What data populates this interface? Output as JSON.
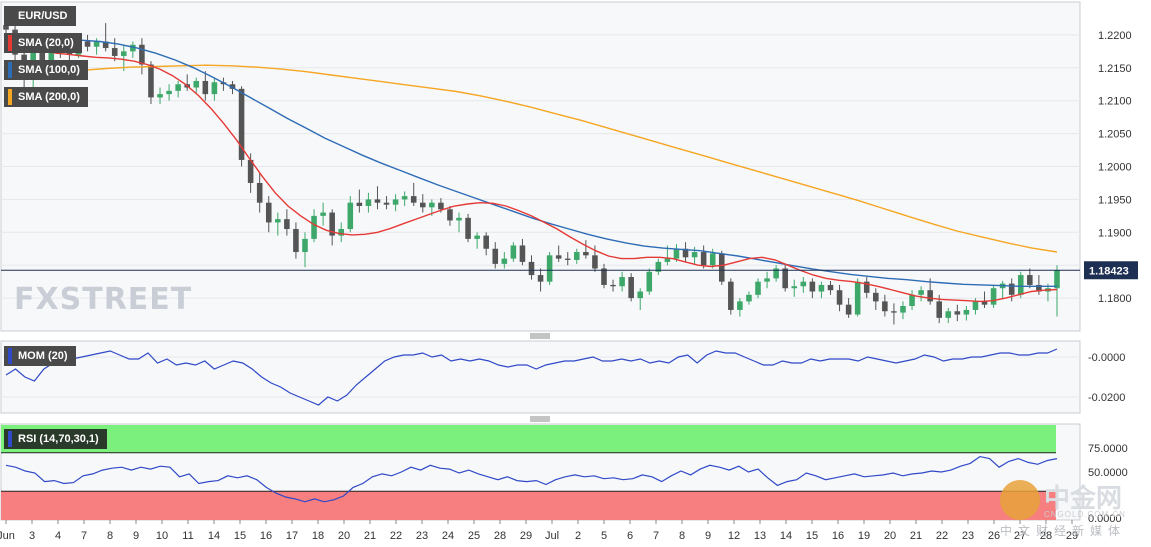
{
  "legends": {
    "symbol": "EUR/USD",
    "sma20": "SMA (20,0)",
    "sma100": "SMA (100,0)",
    "sma200": "SMA (200,0)",
    "mom": "MOM (20)",
    "rsi": "RSI (14,70,30,1)"
  },
  "colors": {
    "sma20": "#e53935",
    "sma100": "#2e6cb5",
    "sma200": "#f5a623",
    "bull": "#3da86a",
    "bear": "#555555",
    "mom_line": "#2f49c8",
    "rsi_line": "#2f49c8",
    "rsi_overbought_zone": "#7cf07c",
    "rsi_oversold_zone": "#f77f7f"
  },
  "watermark": {
    "brand": "FXSTREET",
    "cn_name": "中金网",
    "cn_url": "CNGOLD.COM.CN",
    "cn_tagline": "中文财经新媒体"
  },
  "chart_data": {
    "type": "candlestick",
    "symbol": "EUR/USD",
    "last_price": 1.18423,
    "last_price_label": "1.18423",
    "x_labels": [
      "Jun",
      "3",
      "4",
      "7",
      "8",
      "9",
      "10",
      "11",
      "14",
      "15",
      "16",
      "17",
      "18",
      "20",
      "21",
      "22",
      "23",
      "24",
      "25",
      "28",
      "29",
      "Jul",
      "2",
      "5",
      "6",
      "7",
      "8",
      "9",
      "12",
      "13",
      "14",
      "15",
      "16",
      "19",
      "20",
      "21",
      "22",
      "23",
      "26",
      "27",
      "28",
      "29"
    ],
    "price_axis": {
      "ticks": [
        1.22,
        1.215,
        1.21,
        1.205,
        1.2,
        1.195,
        1.19,
        1.185,
        1.18
      ],
      "tick_labels": [
        "1.2200",
        "1.2150",
        "1.2100",
        "1.2050",
        "1.2000",
        "1.1950",
        "1.1900",
        "1.1850",
        "1.1800"
      ],
      "range": [
        1.175,
        1.225
      ]
    },
    "candles": [
      [
        1.2215,
        1.2228,
        1.2195,
        1.2208
      ],
      [
        1.2208,
        1.2215,
        1.216,
        1.217
      ],
      [
        1.217,
        1.2185,
        1.211,
        1.2135
      ],
      [
        1.2135,
        1.22,
        1.212,
        1.219
      ],
      [
        1.219,
        1.2195,
        1.215,
        1.216
      ],
      [
        1.216,
        1.22,
        1.2145,
        1.2185
      ],
      [
        1.2185,
        1.2198,
        1.2165,
        1.2178
      ],
      [
        1.2178,
        1.2192,
        1.216,
        1.217
      ],
      [
        1.217,
        1.2195,
        1.2165,
        1.219
      ],
      [
        1.219,
        1.22,
        1.2175,
        1.2182
      ],
      [
        1.2182,
        1.2195,
        1.217,
        1.219
      ],
      [
        1.219,
        1.2218,
        1.2175,
        1.218
      ],
      [
        1.218,
        1.2195,
        1.216,
        1.2168
      ],
      [
        1.2168,
        1.2185,
        1.2145,
        1.2175
      ],
      [
        1.2175,
        1.219,
        1.2165,
        1.2185
      ],
      [
        1.2185,
        1.2195,
        1.214,
        1.2155
      ],
      [
        1.2155,
        1.216,
        1.2095,
        1.2105
      ],
      [
        1.2105,
        1.212,
        1.2095,
        1.211
      ],
      [
        1.211,
        1.2125,
        1.21,
        1.2115
      ],
      [
        1.2115,
        1.213,
        1.2105,
        1.2125
      ],
      [
        1.2125,
        1.214,
        1.2115,
        1.212
      ],
      [
        1.212,
        1.2135,
        1.211,
        1.213
      ],
      [
        1.213,
        1.2145,
        1.21,
        1.211
      ],
      [
        1.211,
        1.2135,
        1.21,
        1.2128
      ],
      [
        1.2128,
        1.2135,
        1.2115,
        1.2125
      ],
      [
        1.2125,
        1.213,
        1.211,
        1.2118
      ],
      [
        1.2118,
        1.2122,
        1.2,
        1.201
      ],
      [
        1.201,
        1.202,
        1.196,
        1.1975
      ],
      [
        1.1975,
        1.199,
        1.193,
        1.1945
      ],
      [
        1.1945,
        1.1955,
        1.19,
        1.1915
      ],
      [
        1.1915,
        1.193,
        1.1895,
        1.192
      ],
      [
        1.192,
        1.1935,
        1.1895,
        1.1905
      ],
      [
        1.1905,
        1.1915,
        1.186,
        1.187
      ],
      [
        1.187,
        1.19,
        1.1847,
        1.189
      ],
      [
        1.189,
        1.1935,
        1.1885,
        1.1925
      ],
      [
        1.1925,
        1.1945,
        1.191,
        1.193
      ],
      [
        1.193,
        1.1935,
        1.188,
        1.1895
      ],
      [
        1.1895,
        1.1915,
        1.1885,
        1.1905
      ],
      [
        1.1905,
        1.1955,
        1.19,
        1.1945
      ],
      [
        1.1945,
        1.1965,
        1.193,
        1.194
      ],
      [
        1.194,
        1.196,
        1.193,
        1.195
      ],
      [
        1.195,
        1.197,
        1.1935,
        1.1945
      ],
      [
        1.1945,
        1.1955,
        1.1935,
        1.1942
      ],
      [
        1.1942,
        1.1958,
        1.1932,
        1.195
      ],
      [
        1.195,
        1.1962,
        1.194,
        1.1955
      ],
      [
        1.1955,
        1.1975,
        1.194,
        1.1945
      ],
      [
        1.1945,
        1.1958,
        1.193,
        1.1938
      ],
      [
        1.1938,
        1.195,
        1.1925,
        1.1945
      ],
      [
        1.1945,
        1.1952,
        1.193,
        1.1935
      ],
      [
        1.1935,
        1.194,
        1.191,
        1.1918
      ],
      [
        1.1918,
        1.193,
        1.19,
        1.1922
      ],
      [
        1.1922,
        1.1928,
        1.1885,
        1.189
      ],
      [
        1.189,
        1.19,
        1.1875,
        1.1895
      ],
      [
        1.1895,
        1.19,
        1.1865,
        1.1875
      ],
      [
        1.1875,
        1.1885,
        1.1845,
        1.1852
      ],
      [
        1.1852,
        1.187,
        1.1845,
        1.186
      ],
      [
        1.186,
        1.1885,
        1.1855,
        1.188
      ],
      [
        1.188,
        1.189,
        1.185,
        1.1855
      ],
      [
        1.1855,
        1.1865,
        1.1828,
        1.1835
      ],
      [
        1.1835,
        1.1845,
        1.181,
        1.1825
      ],
      [
        1.1825,
        1.187,
        1.182,
        1.1865
      ],
      [
        1.1865,
        1.188,
        1.1855,
        1.186
      ],
      [
        1.186,
        1.187,
        1.185,
        1.1858
      ],
      [
        1.1858,
        1.1875,
        1.1852,
        1.187
      ],
      [
        1.187,
        1.1888,
        1.186,
        1.1865
      ],
      [
        1.1865,
        1.188,
        1.184,
        1.1845
      ],
      [
        1.1845,
        1.1852,
        1.1815,
        1.182
      ],
      [
        1.182,
        1.1828,
        1.181,
        1.1818
      ],
      [
        1.1818,
        1.184,
        1.181,
        1.1832
      ],
      [
        1.1832,
        1.1838,
        1.1795,
        1.18
      ],
      [
        1.18,
        1.1815,
        1.1782,
        1.181
      ],
      [
        1.181,
        1.1845,
        1.1805,
        1.184
      ],
      [
        1.184,
        1.186,
        1.1835,
        1.1855
      ],
      [
        1.1855,
        1.188,
        1.185,
        1.186
      ],
      [
        1.186,
        1.1882,
        1.1855,
        1.1875
      ],
      [
        1.1875,
        1.1885,
        1.1855,
        1.1862
      ],
      [
        1.1862,
        1.1878,
        1.1852,
        1.187
      ],
      [
        1.187,
        1.188,
        1.1845,
        1.185
      ],
      [
        1.185,
        1.1875,
        1.1845,
        1.1868
      ],
      [
        1.1868,
        1.1872,
        1.182,
        1.1825
      ],
      [
        1.1825,
        1.183,
        1.1775,
        1.1782
      ],
      [
        1.1782,
        1.18,
        1.1772,
        1.1795
      ],
      [
        1.1795,
        1.181,
        1.179,
        1.1805
      ],
      [
        1.1805,
        1.183,
        1.18,
        1.1825
      ],
      [
        1.1825,
        1.184,
        1.1815,
        1.183
      ],
      [
        1.183,
        1.185,
        1.1825,
        1.1845
      ],
      [
        1.1845,
        1.1852,
        1.181,
        1.1815
      ],
      [
        1.1815,
        1.1828,
        1.1802,
        1.1818
      ],
      [
        1.1818,
        1.1832,
        1.1808,
        1.1825
      ],
      [
        1.1825,
        1.183,
        1.18,
        1.181
      ],
      [
        1.181,
        1.1825,
        1.18,
        1.182
      ],
      [
        1.182,
        1.1826,
        1.1805,
        1.1812
      ],
      [
        1.1812,
        1.182,
        1.178,
        1.179
      ],
      [
        1.179,
        1.18,
        1.177,
        1.1775
      ],
      [
        1.1775,
        1.183,
        1.1772,
        1.1825
      ],
      [
        1.1825,
        1.1832,
        1.18,
        1.1808
      ],
      [
        1.1808,
        1.1815,
        1.1782,
        1.1795
      ],
      [
        1.1795,
        1.1805,
        1.1772,
        1.178
      ],
      [
        1.178,
        1.1792,
        1.176,
        1.1778
      ],
      [
        1.1778,
        1.1795,
        1.1768,
        1.1788
      ],
      [
        1.1788,
        1.1812,
        1.1782,
        1.1805
      ],
      [
        1.1805,
        1.1818,
        1.1795,
        1.1812
      ],
      [
        1.1812,
        1.183,
        1.179,
        1.1795
      ],
      [
        1.1795,
        1.1805,
        1.1762,
        1.177
      ],
      [
        1.177,
        1.1785,
        1.1762,
        1.178
      ],
      [
        1.178,
        1.179,
        1.1765,
        1.1775
      ],
      [
        1.1775,
        1.1788,
        1.1766,
        1.1782
      ],
      [
        1.1782,
        1.18,
        1.1775,
        1.1795
      ],
      [
        1.1795,
        1.181,
        1.1785,
        1.179
      ],
      [
        1.179,
        1.182,
        1.1785,
        1.1815
      ],
      [
        1.1815,
        1.1826,
        1.18,
        1.1822
      ],
      [
        1.1822,
        1.183,
        1.1795,
        1.1805
      ],
      [
        1.1805,
        1.184,
        1.18,
        1.1835
      ],
      [
        1.1835,
        1.1845,
        1.1815,
        1.182
      ],
      [
        1.182,
        1.1835,
        1.1805,
        1.181
      ],
      [
        1.181,
        1.1822,
        1.1795,
        1.1815
      ],
      [
        1.1815,
        1.185,
        1.1772,
        1.1842
      ]
    ],
    "sma20": [
      1.219,
      1.2185,
      1.218,
      1.2175,
      1.2172,
      1.217,
      1.2168,
      1.2166,
      1.2165,
      1.2163,
      1.216,
      1.2155,
      1.2148,
      1.2138,
      1.2125,
      1.2108,
      1.2088,
      1.2065,
      1.204,
      1.2012,
      1.1985,
      1.196,
      1.194,
      1.1925,
      1.1912,
      1.1903,
      1.1898,
      1.1896,
      1.1897,
      1.19,
      1.1906,
      1.1913,
      1.192,
      1.1927,
      1.1934,
      1.194,
      1.1943,
      1.1945,
      1.1944,
      1.194,
      1.1933,
      1.1925,
      1.1915,
      1.1905,
      1.1893,
      1.1882,
      1.1872,
      1.1864,
      1.186,
      1.186,
      1.1862,
      1.1862,
      1.186,
      1.1855,
      1.185,
      1.1848,
      1.185,
      1.1855,
      1.186,
      1.1862,
      1.1858,
      1.185,
      1.1842,
      1.1835,
      1.183,
      1.1827,
      1.1825,
      1.1822,
      1.1818,
      1.1813,
      1.1808,
      1.1803,
      1.18,
      1.1798,
      1.1797,
      1.1796,
      1.1795,
      1.1796,
      1.18,
      1.1805,
      1.181,
      1.1812,
      1.1813
    ],
    "sma100": [
      1.2185,
      1.2188,
      1.219,
      1.2192,
      1.2192,
      1.219,
      1.2186,
      1.218,
      1.2172,
      1.2162,
      1.215,
      1.2136,
      1.2121,
      1.2105,
      1.2089,
      1.2073,
      1.2058,
      1.2043,
      1.203,
      1.2017,
      1.2005,
      1.1994,
      1.1983,
      1.1972,
      1.1962,
      1.1952,
      1.1942,
      1.1932,
      1.1922,
      1.1913,
      1.1905,
      1.1897,
      1.189,
      1.1884,
      1.1879,
      1.1876,
      1.1874,
      1.1872,
      1.1868,
      1.1864,
      1.1859,
      1.1854,
      1.1849,
      1.1844,
      1.184,
      1.1836,
      1.1833,
      1.183,
      1.1828,
      1.1825,
      1.1823,
      1.1821,
      1.182,
      1.1819,
      1.1818,
      1.1818,
      1.1818
    ],
    "sma200": [
      1.2138,
      1.214,
      1.2143,
      1.2146,
      1.2149,
      1.2151,
      1.2152,
      1.2153,
      1.2154,
      1.2153,
      1.2151,
      1.2148,
      1.2144,
      1.2139,
      1.2134,
      1.2129,
      1.2124,
      1.2119,
      1.2114,
      1.2107,
      1.2099,
      1.209,
      1.208,
      1.207,
      1.2059,
      1.2048,
      1.2037,
      1.2026,
      1.2015,
      1.2004,
      1.1993,
      1.1982,
      1.1971,
      1.196,
      1.1949,
      1.1937,
      1.1925,
      1.1913,
      1.1902,
      1.1893,
      1.1884,
      1.1876,
      1.187
    ],
    "mom": {
      "ticks": [
        0.0,
        -0.02
      ],
      "tick_labels": [
        "-0.0000",
        "-0.0200"
      ],
      "range": [
        -0.028,
        0.008
      ],
      "values": [
        -0.009,
        -0.006,
        -0.01,
        -0.012,
        -0.006,
        -0.003,
        -0.002,
        -0.001,
        0.0,
        0.001,
        0.002,
        0.003,
        0.001,
        -0.001,
        -0.001,
        0.002,
        -0.003,
        -0.001,
        -0.004,
        -0.003,
        -0.004,
        -0.002,
        -0.006,
        -0.004,
        -0.002,
        -0.003,
        -0.006,
        -0.01,
        -0.013,
        -0.015,
        -0.018,
        -0.02,
        -0.022,
        -0.024,
        -0.02,
        -0.022,
        -0.019,
        -0.014,
        -0.01,
        -0.006,
        -0.002,
        0.0,
        0.001,
        0.001,
        0.002,
        0.0,
        0.001,
        -0.002,
        -0.001,
        -0.002,
        -0.001,
        -0.002,
        -0.004,
        -0.005,
        -0.004,
        -0.004,
        -0.006,
        -0.004,
        -0.003,
        -0.002,
        -0.002,
        -0.001,
        0.0,
        -0.002,
        -0.002,
        -0.001,
        -0.002,
        -0.001,
        -0.003,
        -0.002,
        -0.003,
        0.0,
        0.001,
        -0.003,
        0.001,
        0.003,
        0.002,
        0.002,
        0.0,
        -0.002,
        -0.004,
        -0.004,
        -0.002,
        -0.003,
        -0.003,
        -0.001,
        -0.002,
        -0.001,
        -0.001,
        -0.001,
        -0.002,
        0.0,
        -0.001,
        -0.002,
        -0.003,
        -0.002,
        -0.001,
        0.001,
        0.0,
        -0.002,
        -0.001,
        -0.001,
        0.0,
        0.0,
        0.001,
        0.002,
        0.002,
        0.001,
        0.001,
        0.002,
        0.002,
        0.004
      ]
    },
    "rsi": {
      "ticks": [
        75,
        50,
        0
      ],
      "tick_labels": [
        "75.0000",
        "50.0000",
        "0.0000"
      ],
      "range": [
        0,
        100
      ],
      "overbought": 70,
      "oversold": 30,
      "values": [
        57,
        55,
        51,
        49,
        40,
        41,
        38,
        39,
        46,
        48,
        52,
        54,
        55,
        52,
        55,
        53,
        56,
        55,
        45,
        48,
        38,
        40,
        41,
        46,
        44,
        46,
        42,
        34,
        28,
        24,
        22,
        19,
        22,
        19,
        21,
        25,
        34,
        38,
        45,
        48,
        46,
        50,
        55,
        52,
        57,
        54,
        53,
        49,
        52,
        48,
        45,
        42,
        45,
        41,
        40,
        41,
        37,
        42,
        45,
        47,
        45,
        46,
        43,
        44,
        42,
        43,
        47,
        45,
        40,
        46,
        51,
        47,
        53,
        57,
        55,
        52,
        56,
        50,
        53,
        44,
        36,
        40,
        42,
        49,
        46,
        42,
        44,
        46,
        48,
        45,
        46,
        47,
        49,
        46,
        48,
        49,
        51,
        50,
        52,
        56,
        59,
        66,
        64,
        55,
        61,
        64,
        60,
        58,
        62,
        64
      ]
    }
  }
}
